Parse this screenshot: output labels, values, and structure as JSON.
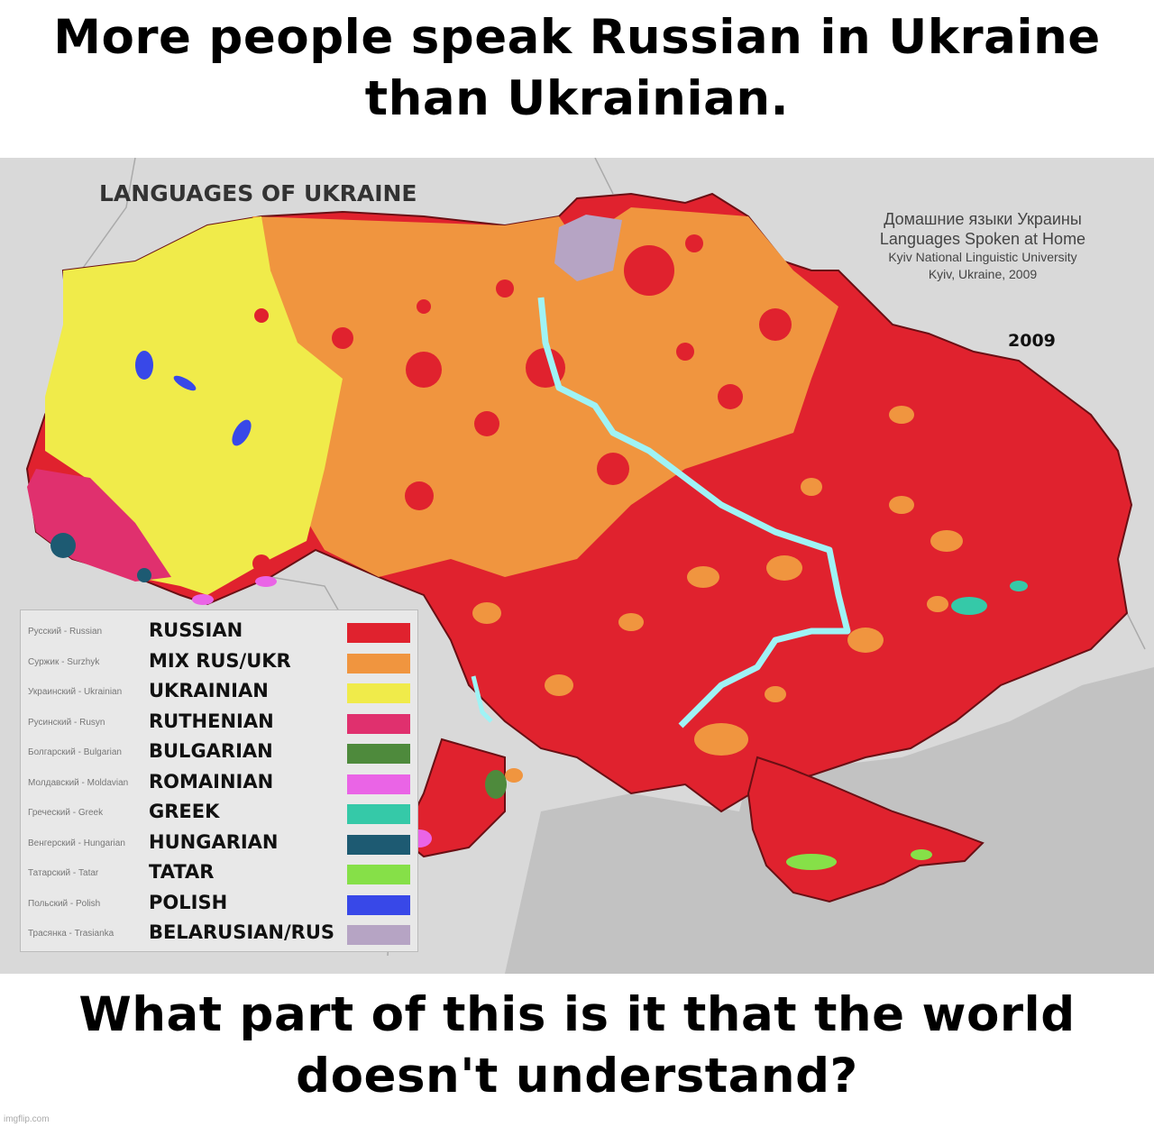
{
  "meme": {
    "top_text": "More people speak Russian in Ukraine than Ukrainian.",
    "bottom_text": "What part of this is it that the world doesn't understand?",
    "watermark": "imgflip.com"
  },
  "map": {
    "title": "LANGUAGES OF UKRAINE",
    "source": {
      "line1": "Домашние языки Украины",
      "line2": "Languages Spoken at Home",
      "line3": "Kyiv National Linguistic University",
      "line4": "Kyiv, Ukraine, 2009"
    },
    "year": "2009",
    "colors": {
      "background": "#d9d9d9",
      "neighbors": "#cfcfcf",
      "sea": "#bdbdbd",
      "river": "#9ff3f5"
    },
    "legend": [
      {
        "small": "Русский - Russian",
        "label": "RUSSIAN",
        "color": "#e0222e"
      },
      {
        "small": "Суржик - Surzhyk",
        "label": "MIX RUS/UKR",
        "color": "#f0953f"
      },
      {
        "small": "Украинский - Ukrainian",
        "label": "UKRAINIAN",
        "color": "#f0eb4a"
      },
      {
        "small": "Русинский - Rusyn",
        "label": "RUTHENIAN",
        "color": "#e0306e"
      },
      {
        "small": "Болгарский - Bulgarian",
        "label": "BULGARIAN",
        "color": "#4e8a3c"
      },
      {
        "small": "Молдавский - Moldavian",
        "label": "ROMAINIAN",
        "color": "#ea64e6"
      },
      {
        "small": "Греческий - Greek",
        "label": "GREEK",
        "color": "#35c9a8"
      },
      {
        "small": "Венгерский - Hungarian",
        "label": "HUNGARIAN",
        "color": "#1d5a72"
      },
      {
        "small": "Татарский - Tatar",
        "label": "TATAR",
        "color": "#86e048"
      },
      {
        "small": "Польский - Polish",
        "label": "POLISH",
        "color": "#3848e8"
      },
      {
        "small": "Трасянка - Trasianka",
        "label": "BELARUSIAN/RUS",
        "color": "#b6a4c4"
      }
    ]
  }
}
